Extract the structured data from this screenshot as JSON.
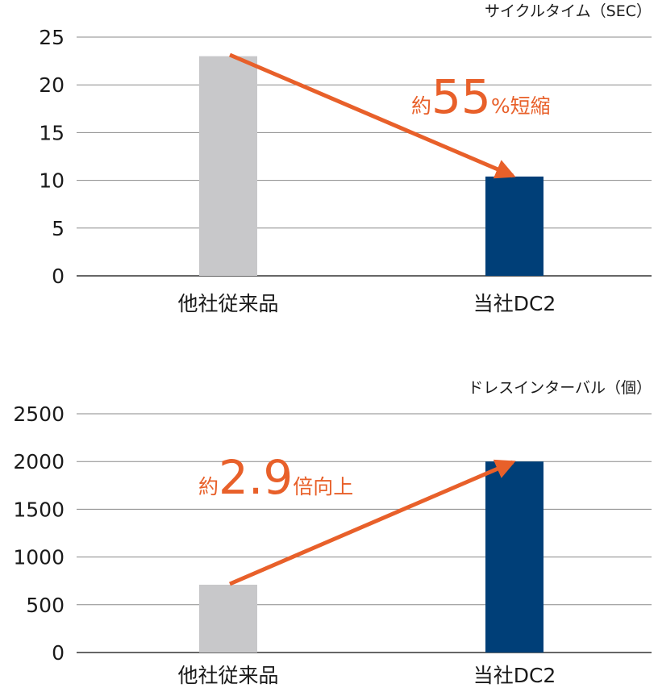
{
  "colors": {
    "competitor_bar": "#c8c8ca",
    "own_bar": "#003f78",
    "arrow": "#e8602a",
    "gridline": "#8a8a8a",
    "axis": "#333333",
    "text": "#1a1a1a"
  },
  "chart_data": [
    {
      "type": "bar",
      "unit_label": "サイクルタイム（SEC）",
      "categories": [
        "他社従来品",
        "当社DC2"
      ],
      "values": [
        23,
        10.4
      ],
      "ylim": [
        0,
        25
      ],
      "yticks": [
        "0",
        "5",
        "10",
        "15",
        "20",
        "25"
      ],
      "grid": true,
      "annotation": {
        "prefix": "約",
        "number": "55",
        "suffix": "%短縮"
      }
    },
    {
      "type": "bar",
      "unit_label": "ドレスインターバル（個）",
      "categories": [
        "他社従来品",
        "当社DC2"
      ],
      "values": [
        710,
        2000
      ],
      "ylim": [
        0,
        2500
      ],
      "yticks": [
        "0",
        "500",
        "1000",
        "1500",
        "2000",
        "2500"
      ],
      "grid": true,
      "annotation": {
        "prefix": "約",
        "number": "2.9",
        "suffix": "倍向上"
      }
    }
  ]
}
